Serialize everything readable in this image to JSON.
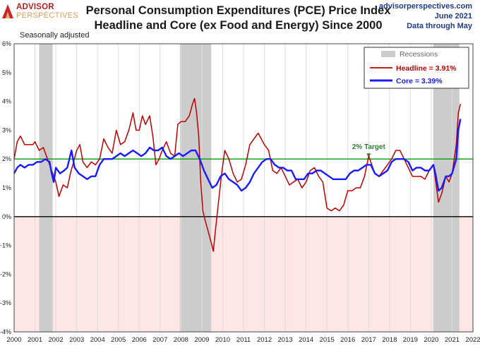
{
  "branding": {
    "logo_top": "ADVISOR",
    "logo_bottom": "PERSPECTIVES",
    "site": "advisorperspectives.com",
    "date": "June 2021",
    "data_note": "Data through May"
  },
  "colors": {
    "headline": "#c00000",
    "core": "#1a1aff",
    "target": "#00a000",
    "recession": "#cccccc",
    "negative_zone": "#fde6e6",
    "target_label": "#2e7d32"
  },
  "chart_data": {
    "type": "line",
    "title": "Personal Consumption Expenditures (PCE) Price Index",
    "subtitle": "Headline and Core (ex Food and Energy) Since 2000",
    "note": "Seasonally adjusted",
    "xlim": [
      2000,
      2022
    ],
    "ylim": [
      -4,
      6
    ],
    "y_unit": "%",
    "x_ticks": [
      "2000",
      "2001",
      "2002",
      "2003",
      "2004",
      "2005",
      "2006",
      "2007",
      "2008",
      "2009",
      "2010",
      "2011",
      "2012",
      "2013",
      "2014",
      "2015",
      "2016",
      "2017",
      "2018",
      "2019",
      "2020",
      "2021",
      "2022"
    ],
    "y_ticks": [
      "-4%",
      "-3%",
      "-2%",
      "-1%",
      "0%",
      "1%",
      "2%",
      "3%",
      "4%",
      "5%",
      "6%"
    ],
    "grid": "vertical",
    "legend_position": "top-right",
    "legend_title": "Recessions",
    "recessions": [
      {
        "start": 2001.2,
        "end": 2001.85
      },
      {
        "start": 2007.95,
        "end": 2009.45
      },
      {
        "start": 2020.1,
        "end": 2021.35
      }
    ],
    "target": {
      "value": 2,
      "label": "2% Target",
      "label_x": 2017.0
    },
    "series": [
      {
        "name": "Headline = 3.91%",
        "key": "headline",
        "points": [
          [
            2000.0,
            2.0
          ],
          [
            2000.15,
            2.6
          ],
          [
            2000.3,
            2.8
          ],
          [
            2000.5,
            2.5
          ],
          [
            2000.7,
            2.5
          ],
          [
            2000.9,
            2.5
          ],
          [
            2001.0,
            2.6
          ],
          [
            2001.2,
            2.3
          ],
          [
            2001.4,
            2.4
          ],
          [
            2001.6,
            2.0
          ],
          [
            2001.8,
            1.6
          ],
          [
            2002.0,
            1.2
          ],
          [
            2002.15,
            0.7
          ],
          [
            2002.35,
            1.1
          ],
          [
            2002.55,
            1.0
          ],
          [
            2002.7,
            1.5
          ],
          [
            2002.85,
            1.9
          ],
          [
            2003.0,
            2.3
          ],
          [
            2003.15,
            2.5
          ],
          [
            2003.3,
            1.9
          ],
          [
            2003.5,
            1.7
          ],
          [
            2003.7,
            1.9
          ],
          [
            2003.9,
            1.8
          ],
          [
            2004.1,
            2.0
          ],
          [
            2004.3,
            2.7
          ],
          [
            2004.5,
            2.4
          ],
          [
            2004.7,
            2.2
          ],
          [
            2004.9,
            3.0
          ],
          [
            2005.1,
            2.5
          ],
          [
            2005.3,
            2.6
          ],
          [
            2005.5,
            3.0
          ],
          [
            2005.7,
            3.6
          ],
          [
            2005.85,
            3.0
          ],
          [
            2006.0,
            3.0
          ],
          [
            2006.15,
            3.5
          ],
          [
            2006.3,
            3.2
          ],
          [
            2006.5,
            3.5
          ],
          [
            2006.65,
            2.8
          ],
          [
            2006.8,
            1.8
          ],
          [
            2006.95,
            2.0
          ],
          [
            2007.1,
            2.3
          ],
          [
            2007.3,
            2.6
          ],
          [
            2007.5,
            2.2
          ],
          [
            2007.7,
            2.1
          ],
          [
            2007.85,
            3.2
          ],
          [
            2008.0,
            3.3
          ],
          [
            2008.2,
            3.3
          ],
          [
            2008.4,
            3.5
          ],
          [
            2008.55,
            3.9
          ],
          [
            2008.65,
            4.1
          ],
          [
            2008.75,
            3.6
          ],
          [
            2008.85,
            2.8
          ],
          [
            2008.95,
            1.2
          ],
          [
            2009.05,
            0.2
          ],
          [
            2009.15,
            -0.1
          ],
          [
            2009.3,
            -0.5
          ],
          [
            2009.45,
            -0.9
          ],
          [
            2009.55,
            -1.2
          ],
          [
            2009.65,
            -0.5
          ],
          [
            2009.8,
            0.5
          ],
          [
            2009.95,
            1.5
          ],
          [
            2010.1,
            2.3
          ],
          [
            2010.3,
            2.0
          ],
          [
            2010.5,
            1.5
          ],
          [
            2010.7,
            1.2
          ],
          [
            2010.9,
            1.3
          ],
          [
            2011.1,
            1.8
          ],
          [
            2011.3,
            2.5
          ],
          [
            2011.5,
            2.7
          ],
          [
            2011.7,
            2.9
          ],
          [
            2011.85,
            2.7
          ],
          [
            2012.0,
            2.5
          ],
          [
            2012.2,
            2.3
          ],
          [
            2012.4,
            1.6
          ],
          [
            2012.6,
            1.5
          ],
          [
            2012.8,
            1.7
          ],
          [
            2013.0,
            1.4
          ],
          [
            2013.2,
            1.1
          ],
          [
            2013.4,
            1.2
          ],
          [
            2013.6,
            1.3
          ],
          [
            2013.8,
            1.0
          ],
          [
            2014.0,
            1.2
          ],
          [
            2014.2,
            1.6
          ],
          [
            2014.4,
            1.7
          ],
          [
            2014.6,
            1.4
          ],
          [
            2014.8,
            1.2
          ],
          [
            2015.0,
            0.3
          ],
          [
            2015.2,
            0.2
          ],
          [
            2015.4,
            0.3
          ],
          [
            2015.6,
            0.2
          ],
          [
            2015.8,
            0.4
          ],
          [
            2016.0,
            0.9
          ],
          [
            2016.2,
            0.9
          ],
          [
            2016.4,
            1.0
          ],
          [
            2016.6,
            1.0
          ],
          [
            2016.8,
            1.4
          ],
          [
            2017.0,
            2.1
          ],
          [
            2017.15,
            1.8
          ],
          [
            2017.3,
            1.5
          ],
          [
            2017.5,
            1.4
          ],
          [
            2017.7,
            1.6
          ],
          [
            2017.9,
            1.8
          ],
          [
            2018.1,
            2.0
          ],
          [
            2018.3,
            2.3
          ],
          [
            2018.5,
            2.3
          ],
          [
            2018.7,
            2.0
          ],
          [
            2018.9,
            1.7
          ],
          [
            2019.1,
            1.4
          ],
          [
            2019.3,
            1.4
          ],
          [
            2019.5,
            1.4
          ],
          [
            2019.7,
            1.3
          ],
          [
            2019.9,
            1.6
          ],
          [
            2020.1,
            1.8
          ],
          [
            2020.2,
            1.3
          ],
          [
            2020.35,
            0.5
          ],
          [
            2020.5,
            0.8
          ],
          [
            2020.7,
            1.4
          ],
          [
            2020.85,
            1.2
          ],
          [
            2021.0,
            1.5
          ],
          [
            2021.2,
            2.5
          ],
          [
            2021.3,
            3.6
          ],
          [
            2021.4,
            3.91
          ]
        ]
      },
      {
        "name": "Core = 3.39%",
        "key": "core",
        "points": [
          [
            2000.0,
            1.5
          ],
          [
            2000.15,
            1.7
          ],
          [
            2000.3,
            1.8
          ],
          [
            2000.5,
            1.7
          ],
          [
            2000.7,
            1.8
          ],
          [
            2000.9,
            1.8
          ],
          [
            2001.1,
            1.9
          ],
          [
            2001.3,
            1.9
          ],
          [
            2001.5,
            2.0
          ],
          [
            2001.7,
            1.9
          ],
          [
            2001.8,
            1.5
          ],
          [
            2001.9,
            1.2
          ],
          [
            2002.0,
            1.7
          ],
          [
            2002.2,
            1.5
          ],
          [
            2002.4,
            1.6
          ],
          [
            2002.55,
            1.7
          ],
          [
            2002.75,
            2.3
          ],
          [
            2002.9,
            1.7
          ],
          [
            2003.1,
            1.5
          ],
          [
            2003.3,
            1.4
          ],
          [
            2003.5,
            1.3
          ],
          [
            2003.7,
            1.4
          ],
          [
            2003.9,
            1.4
          ],
          [
            2004.1,
            1.8
          ],
          [
            2004.3,
            2.0
          ],
          [
            2004.5,
            2.0
          ],
          [
            2004.7,
            2.0
          ],
          [
            2004.9,
            2.1
          ],
          [
            2005.1,
            2.2
          ],
          [
            2005.3,
            2.1
          ],
          [
            2005.5,
            2.2
          ],
          [
            2005.7,
            2.3
          ],
          [
            2005.9,
            2.2
          ],
          [
            2006.1,
            2.1
          ],
          [
            2006.3,
            2.2
          ],
          [
            2006.5,
            2.4
          ],
          [
            2006.7,
            2.3
          ],
          [
            2006.9,
            2.3
          ],
          [
            2007.1,
            2.4
          ],
          [
            2007.3,
            2.1
          ],
          [
            2007.5,
            2.0
          ],
          [
            2007.7,
            2.1
          ],
          [
            2007.9,
            2.2
          ],
          [
            2008.1,
            2.1
          ],
          [
            2008.3,
            2.2
          ],
          [
            2008.5,
            2.3
          ],
          [
            2008.7,
            2.3
          ],
          [
            2008.9,
            2.0
          ],
          [
            2009.1,
            1.6
          ],
          [
            2009.3,
            1.3
          ],
          [
            2009.5,
            1.0
          ],
          [
            2009.7,
            1.1
          ],
          [
            2009.9,
            1.4
          ],
          [
            2010.1,
            1.5
          ],
          [
            2010.3,
            1.3
          ],
          [
            2010.5,
            1.2
          ],
          [
            2010.7,
            1.1
          ],
          [
            2010.9,
            0.9
          ],
          [
            2011.1,
            1.0
          ],
          [
            2011.3,
            1.2
          ],
          [
            2011.5,
            1.5
          ],
          [
            2011.7,
            1.7
          ],
          [
            2011.9,
            1.9
          ],
          [
            2012.1,
            2.0
          ],
          [
            2012.3,
            2.0
          ],
          [
            2012.5,
            1.8
          ],
          [
            2012.7,
            1.7
          ],
          [
            2012.9,
            1.7
          ],
          [
            2013.1,
            1.6
          ],
          [
            2013.3,
            1.6
          ],
          [
            2013.5,
            1.3
          ],
          [
            2013.7,
            1.3
          ],
          [
            2013.9,
            1.3
          ],
          [
            2014.1,
            1.5
          ],
          [
            2014.3,
            1.5
          ],
          [
            2014.5,
            1.6
          ],
          [
            2014.7,
            1.6
          ],
          [
            2014.9,
            1.5
          ],
          [
            2015.1,
            1.4
          ],
          [
            2015.3,
            1.3
          ],
          [
            2015.5,
            1.3
          ],
          [
            2015.7,
            1.3
          ],
          [
            2015.9,
            1.3
          ],
          [
            2016.1,
            1.5
          ],
          [
            2016.3,
            1.6
          ],
          [
            2016.5,
            1.6
          ],
          [
            2016.7,
            1.7
          ],
          [
            2016.9,
            1.8
          ],
          [
            2017.1,
            1.8
          ],
          [
            2017.3,
            1.5
          ],
          [
            2017.5,
            1.4
          ],
          [
            2017.7,
            1.5
          ],
          [
            2017.9,
            1.6
          ],
          [
            2018.1,
            1.9
          ],
          [
            2018.3,
            2.0
          ],
          [
            2018.5,
            2.0
          ],
          [
            2018.7,
            2.0
          ],
          [
            2018.9,
            1.9
          ],
          [
            2019.1,
            1.6
          ],
          [
            2019.3,
            1.7
          ],
          [
            2019.5,
            1.7
          ],
          [
            2019.7,
            1.6
          ],
          [
            2019.9,
            1.6
          ],
          [
            2020.1,
            1.8
          ],
          [
            2020.2,
            1.5
          ],
          [
            2020.35,
            0.9
          ],
          [
            2020.5,
            1.0
          ],
          [
            2020.7,
            1.4
          ],
          [
            2020.85,
            1.4
          ],
          [
            2021.0,
            1.5
          ],
          [
            2021.2,
            2.0
          ],
          [
            2021.3,
            3.0
          ],
          [
            2021.4,
            3.39
          ]
        ]
      }
    ]
  }
}
